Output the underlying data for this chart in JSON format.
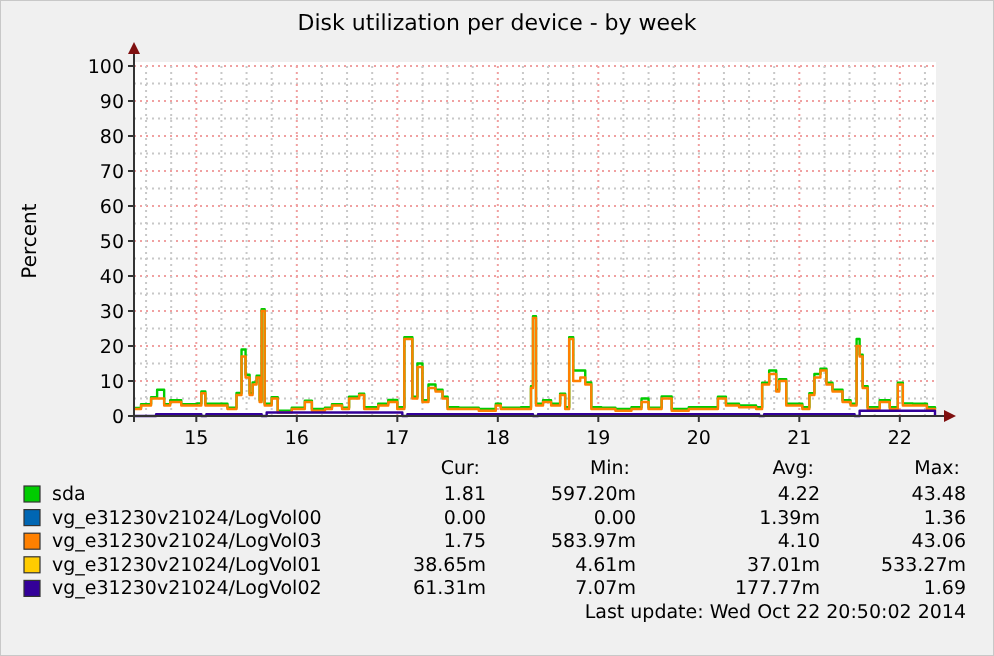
{
  "chart_data": {
    "type": "step",
    "title": "Disk utilization per device - by week",
    "ylabel": "Percent",
    "xlim": [
      14.38,
      22.36
    ],
    "xticks": [
      15,
      16,
      17,
      18,
      19,
      20,
      21,
      22
    ],
    "ylim": [
      0,
      100
    ],
    "yticks": [
      0,
      10,
      20,
      30,
      40,
      50,
      60,
      70,
      80,
      90,
      100
    ],
    "grid": true,
    "legend": "bottom",
    "series": [
      {
        "name": "sda",
        "color": "#00cc00",
        "x": [
          14.38,
          14.45,
          14.55,
          14.61,
          14.68,
          14.74,
          14.85,
          15.01,
          15.05,
          15.09,
          15.21,
          15.31,
          15.4,
          15.45,
          15.49,
          15.53,
          15.56,
          15.6,
          15.63,
          15.65,
          15.68,
          15.75,
          15.81,
          15.95,
          16.08,
          16.15,
          16.28,
          16.35,
          16.45,
          16.52,
          16.62,
          16.67,
          16.81,
          16.91,
          17.0,
          17.07,
          17.11,
          17.15,
          17.2,
          17.25,
          17.31,
          17.38,
          17.45,
          17.5,
          17.61,
          17.81,
          17.98,
          18.03,
          18.23,
          18.33,
          18.35,
          18.38,
          18.45,
          18.53,
          18.62,
          18.67,
          18.71,
          18.75,
          18.82,
          18.87,
          18.93,
          19.03,
          19.17,
          19.33,
          19.43,
          19.5,
          19.63,
          19.73,
          19.9,
          20.1,
          20.19,
          20.27,
          20.4,
          20.57,
          20.63,
          20.7,
          20.77,
          20.8,
          20.87,
          21.03,
          21.1,
          21.15,
          21.21,
          21.27,
          21.33,
          21.43,
          21.51,
          21.57,
          21.6,
          21.63,
          21.68,
          21.8,
          21.9,
          21.98,
          22.03,
          22.13,
          22.27,
          22.35
        ],
        "values": [
          2.3,
          3.4,
          5.4,
          7.5,
          3.4,
          4.5,
          3.4,
          3.6,
          7,
          3.5,
          3.5,
          2.4,
          6.6,
          19,
          11.8,
          6.5,
          9.6,
          11.5,
          4.5,
          30.5,
          3.5,
          5.4,
          1.5,
          2.4,
          4.4,
          2,
          2.4,
          3.4,
          2.4,
          5.5,
          6.4,
          2.5,
          3.5,
          4.6,
          2.5,
          22.5,
          22.5,
          5.5,
          15,
          4.5,
          9,
          7.5,
          5.5,
          2.5,
          2.4,
          2,
          3.5,
          2.4,
          2.5,
          8.5,
          28.5,
          3.5,
          4.5,
          3.5,
          6.4,
          2.5,
          22.5,
          13,
          13,
          9.6,
          2.5,
          2.4,
          2,
          2.5,
          5,
          2.4,
          5.6,
          2,
          2.5,
          2.5,
          5.5,
          3.5,
          3,
          2.5,
          9.5,
          13,
          7.5,
          10.5,
          3.5,
          2.5,
          6.5,
          12,
          13.5,
          9.5,
          7.5,
          4.5,
          3.5,
          22,
          17.5,
          8.5,
          2.5,
          4.5,
          2.5,
          9.5,
          3.6,
          3.5,
          2.5,
          2
        ]
      },
      {
        "name": "vg_e31230v21024/LogVol00",
        "color": "#0066b3"
      },
      {
        "name": "vg_e31230v21024/LogVol03",
        "color": "#ff8000",
        "x": [
          14.38,
          14.45,
          14.55,
          14.61,
          14.68,
          14.74,
          14.85,
          15.01,
          15.05,
          15.09,
          15.21,
          15.31,
          15.4,
          15.45,
          15.49,
          15.53,
          15.56,
          15.6,
          15.63,
          15.65,
          15.68,
          15.75,
          15.81,
          15.95,
          16.08,
          16.15,
          16.28,
          16.35,
          16.45,
          16.52,
          16.62,
          16.67,
          16.81,
          16.91,
          17.0,
          17.07,
          17.11,
          17.15,
          17.2,
          17.25,
          17.31,
          17.38,
          17.45,
          17.5,
          17.61,
          17.81,
          17.98,
          18.03,
          18.23,
          18.33,
          18.35,
          18.38,
          18.45,
          18.53,
          18.62,
          18.67,
          18.71,
          18.75,
          18.82,
          18.87,
          18.93,
          19.03,
          19.17,
          19.33,
          19.43,
          19.5,
          19.63,
          19.73,
          19.9,
          20.1,
          20.19,
          20.27,
          20.4,
          20.57,
          20.63,
          20.7,
          20.77,
          20.8,
          20.87,
          21.03,
          21.1,
          21.15,
          21.21,
          21.27,
          21.33,
          21.43,
          21.51,
          21.57,
          21.6,
          21.63,
          21.68,
          21.8,
          21.9,
          21.98,
          22.03,
          22.13,
          22.27,
          22.35
        ],
        "values": [
          2,
          3,
          5,
          5,
          3,
          4,
          3,
          3,
          6.5,
          3,
          3,
          2,
          6,
          17,
          11,
          6,
          9,
          11,
          4,
          30,
          3,
          5,
          1,
          2,
          4,
          1.5,
          2,
          3,
          2,
          5,
          6,
          2,
          3,
          4,
          2,
          22,
          22,
          5,
          14,
          4,
          8,
          7,
          5,
          2,
          2,
          1.5,
          3,
          2,
          2,
          8,
          28,
          3,
          4,
          3,
          6,
          2,
          22,
          10,
          11,
          9,
          2,
          2,
          1.5,
          2,
          4,
          2,
          5,
          1.5,
          2,
          2,
          5,
          3,
          2.5,
          2,
          9,
          12,
          7,
          10,
          3,
          2,
          6,
          11,
          13,
          9,
          7,
          4,
          3,
          20,
          17,
          8,
          2,
          4,
          2,
          9,
          3,
          3,
          2,
          1.5
        ]
      },
      {
        "name": "vg_e31230v21024/LogVol01",
        "color": "#ffcc00"
      },
      {
        "name": "vg_e31230v21024/LogVol02",
        "color": "#330099",
        "x": [
          14.38,
          14.55,
          14.6,
          15.05,
          15.1,
          15.65,
          15.7,
          17.05,
          17.1,
          18.35,
          18.4,
          20.6,
          20.65,
          21.55,
          21.6,
          22.35
        ],
        "values": [
          0,
          0,
          0.5,
          0,
          0.5,
          0,
          1,
          0,
          0.5,
          0,
          0.5,
          0,
          0.5,
          0,
          1.5,
          0
        ]
      }
    ],
    "annotations": [
      "Cur:",
      "Min:",
      "Avg:",
      "Max:",
      "1.81",
      "597.20m",
      "4.22",
      "43.48",
      "0.00",
      "0.00",
      "1.39m",
      "1.36",
      "1.75",
      "583.97m",
      "4.10",
      "43.06",
      "38.65m",
      "4.61m",
      "37.01m",
      "533.27m",
      "61.31m",
      "7.07m",
      "177.77m",
      "1.69",
      "Last update: Wed Oct 22 20:50:02 2014"
    ]
  }
}
